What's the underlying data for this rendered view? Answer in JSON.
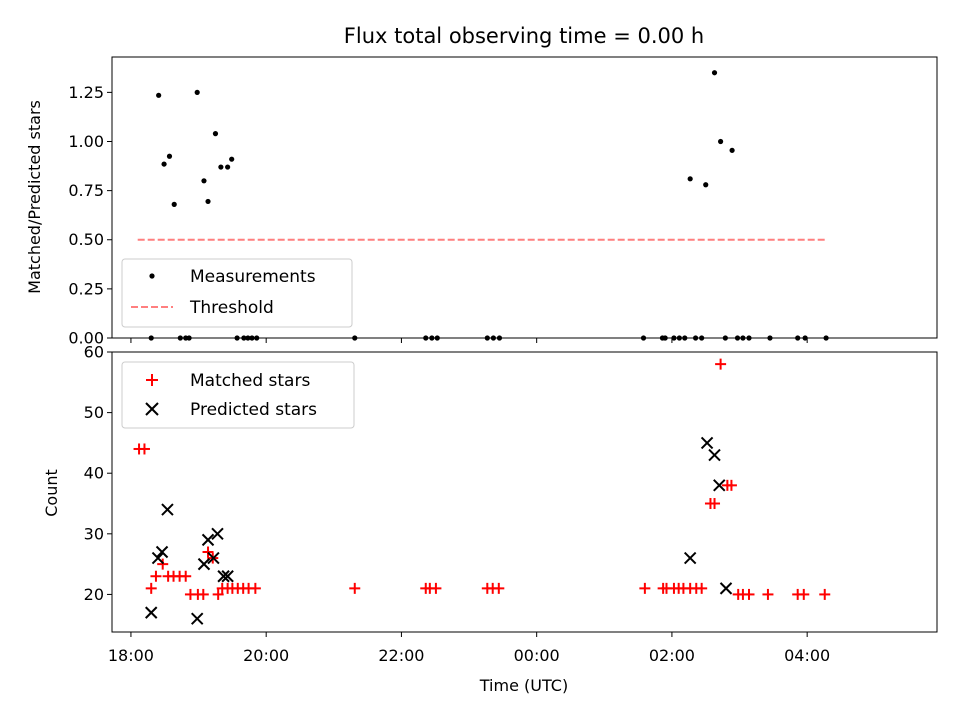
{
  "chart_data": [
    {
      "type": "scatter",
      "panel": "top",
      "title": "Flux total observing time = 0.00 h",
      "xlabel": "",
      "ylabel": "Matched/Predicted stars",
      "xlim": [
        17.72,
        29.92
      ],
      "ylim": [
        0.0,
        1.43
      ],
      "yticks": [
        0.0,
        0.25,
        0.5,
        0.75,
        1.0,
        1.25
      ],
      "ytick_labels": [
        "0.00",
        "0.25",
        "0.50",
        "0.75",
        "1.00",
        "1.25"
      ],
      "xticks": [
        18,
        20,
        22,
        24,
        26,
        28
      ],
      "legend": {
        "position": "lower-left",
        "entries": [
          "Measurements",
          "Threshold"
        ]
      },
      "series": [
        {
          "name": "Measurements",
          "style": "dot",
          "color": "#000000",
          "x": [
            18.3,
            18.41,
            18.49,
            18.57,
            18.64,
            18.73,
            18.81,
            18.86,
            18.98,
            19.08,
            19.14,
            19.25,
            19.33,
            19.43,
            19.49,
            19.57,
            19.67,
            19.73,
            19.79,
            19.86,
            21.31,
            22.36,
            22.45,
            22.53,
            23.27,
            23.36,
            23.45,
            25.58,
            25.86,
            25.9,
            26.03,
            26.11,
            26.19,
            26.27,
            26.35,
            26.44,
            26.5,
            26.63,
            26.72,
            26.79,
            26.89,
            26.97,
            27.05,
            27.14,
            27.45,
            27.86,
            27.97,
            28.28
          ],
          "y": [
            0.0,
            1.235,
            0.885,
            0.925,
            0.68,
            0.0,
            0.0,
            0.0,
            1.25,
            0.8,
            0.695,
            1.04,
            0.87,
            0.87,
            0.91,
            0.0,
            0.0,
            0.0,
            0.0,
            0.0,
            0.0,
            0.0,
            0.0,
            0.0,
            0.0,
            0.0,
            0.0,
            0.0,
            0.0,
            0.0,
            0.0,
            0.0,
            0.0,
            0.81,
            0.0,
            0.0,
            0.78,
            1.35,
            1.0,
            0.0,
            0.955,
            0.0,
            0.0,
            0.0,
            0.0,
            0.0,
            0.0,
            0.0
          ]
        },
        {
          "name": "Threshold",
          "style": "dashed-line",
          "color": "#ff7f7f",
          "x": [
            18.1,
            28.3
          ],
          "y": [
            0.5,
            0.5
          ]
        }
      ]
    },
    {
      "type": "scatter",
      "panel": "bottom",
      "title": "",
      "xlabel": "Time (UTC)",
      "ylabel": "Count",
      "xlim": [
        17.72,
        29.92
      ],
      "ylim": [
        13.8,
        60.0
      ],
      "yticks": [
        20,
        30,
        40,
        50,
        60
      ],
      "ytick_labels": [
        "20",
        "30",
        "40",
        "50",
        "60"
      ],
      "xticks": [
        18,
        20,
        22,
        24,
        26,
        28
      ],
      "xtick_labels": [
        "18:00",
        "20:00",
        "22:00",
        "00:00",
        "02:00",
        "04:00"
      ],
      "legend": {
        "position": "upper-left",
        "entries": [
          "Matched stars",
          "Predicted stars"
        ]
      },
      "series": [
        {
          "name": "Matched stars",
          "marker": "plus",
          "color": "#ff0000",
          "x": [
            18.12,
            18.2,
            18.3,
            18.37,
            18.47,
            18.55,
            18.63,
            18.72,
            18.81,
            18.88,
            18.99,
            19.07,
            19.14,
            19.21,
            19.29,
            19.35,
            19.43,
            19.5,
            19.58,
            19.66,
            19.74,
            19.84,
            21.31,
            22.36,
            22.42,
            22.51,
            23.27,
            23.35,
            23.44,
            25.6,
            25.87,
            25.92,
            26.03,
            26.1,
            26.17,
            26.27,
            26.36,
            26.44,
            26.57,
            26.63,
            26.72,
            26.82,
            26.88,
            26.98,
            27.05,
            27.14,
            27.42,
            27.86,
            27.95,
            28.26
          ],
          "y": [
            44,
            44,
            21,
            23,
            25,
            23,
            23,
            23,
            23,
            20,
            20,
            20,
            27,
            26,
            20,
            21,
            21,
            21,
            21,
            21,
            21,
            21,
            21,
            21,
            21,
            21,
            21,
            21,
            21,
            21,
            21,
            21,
            21,
            21,
            21,
            21,
            21,
            21,
            35,
            35,
            58,
            38,
            38,
            20,
            20,
            20,
            20,
            20,
            20,
            20
          ]
        },
        {
          "name": "Predicted stars",
          "marker": "x",
          "color": "#000000",
          "x": [
            18.3,
            18.4,
            18.46,
            18.54,
            18.98,
            19.08,
            19.14,
            19.22,
            19.28,
            19.37,
            19.43,
            26.27,
            26.52,
            26.63,
            26.7,
            26.8
          ],
          "y": [
            17,
            26,
            27,
            34,
            16,
            25,
            29,
            26,
            30,
            23,
            23,
            26,
            45,
            43,
            38,
            21
          ]
        }
      ]
    }
  ]
}
